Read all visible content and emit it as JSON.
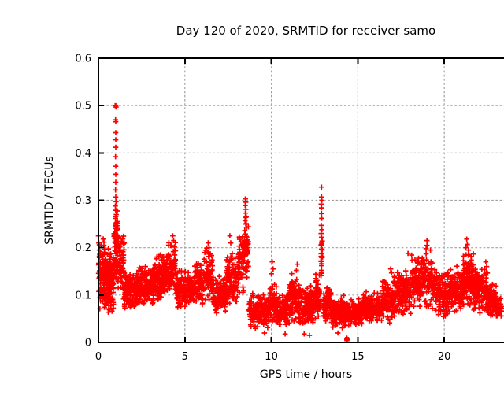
{
  "chart_data": {
    "type": "scatter",
    "title": "Day 120 of 2020, SRMTID for receiver samo",
    "xlabel": "GPS time / hours",
    "ylabel": "SRMTID / TECUs",
    "series_name": "SRMTID",
    "legend": "none",
    "grid": true,
    "xlim": [
      0,
      24
    ],
    "ylim": [
      0,
      0.6
    ],
    "x_ticks": [
      "0",
      "5",
      "10",
      "15",
      "20"
    ],
    "x_tick_values": [
      0,
      5,
      10,
      15,
      20
    ],
    "y_ticks": [
      "0",
      "0.1",
      "0.2",
      "0.3",
      "0.4",
      "0.5",
      "0.6"
    ],
    "y_tick_values": [
      0,
      0.1,
      0.2,
      0.3,
      0.4,
      0.5,
      0.6
    ],
    "marker": {
      "shape": "plus",
      "color": "#ff0000",
      "size": 6.6,
      "stroke_width": 1.7
    },
    "colors": {
      "points": "#ff0000",
      "grid": "#a0a0a0",
      "frame": "#000000",
      "text": "#000000",
      "background": "#ffffff"
    },
    "scatter": {
      "seed": 11,
      "segments": [
        [
          0.0,
          0.12,
          20,
          0.07,
          0.235
        ],
        [
          0.08,
          0.5,
          115,
          0.065,
          0.225
        ],
        [
          0.5,
          0.88,
          100,
          0.06,
          0.205
        ],
        [
          0.88,
          1.02,
          28,
          0.12,
          0.27
        ],
        [
          0.98,
          1.12,
          32,
          0.13,
          0.3
        ],
        [
          1.1,
          1.5,
          65,
          0.09,
          0.235
        ],
        [
          1.5,
          2.3,
          135,
          0.065,
          0.15
        ],
        [
          2.3,
          3.2,
          155,
          0.075,
          0.165
        ],
        [
          3.2,
          4.0,
          145,
          0.08,
          0.19
        ],
        [
          4.0,
          4.5,
          78,
          0.09,
          0.22
        ],
        [
          4.5,
          5.5,
          155,
          0.065,
          0.155
        ],
        [
          5.5,
          6.1,
          92,
          0.075,
          0.175
        ],
        [
          6.1,
          6.6,
          72,
          0.08,
          0.205
        ],
        [
          6.6,
          7.4,
          118,
          0.06,
          0.14
        ],
        [
          7.4,
          8.1,
          102,
          0.07,
          0.19
        ],
        [
          8.1,
          8.45,
          58,
          0.1,
          0.245
        ],
        [
          8.45,
          8.68,
          30,
          0.12,
          0.27
        ],
        [
          8.68,
          9.9,
          165,
          0.025,
          0.105
        ],
        [
          9.9,
          10.3,
          58,
          0.035,
          0.13
        ],
        [
          10.3,
          11.0,
          112,
          0.03,
          0.105
        ],
        [
          11.0,
          11.65,
          100,
          0.035,
          0.15
        ],
        [
          11.65,
          12.55,
          140,
          0.03,
          0.125
        ],
        [
          12.55,
          12.88,
          48,
          0.05,
          0.15
        ],
        [
          12.86,
          12.98,
          16,
          0.13,
          0.23
        ],
        [
          12.98,
          13.45,
          72,
          0.04,
          0.12
        ],
        [
          13.45,
          14.35,
          145,
          0.028,
          0.1
        ],
        [
          14.35,
          15.3,
          140,
          0.03,
          0.095
        ],
        [
          15.3,
          16.4,
          160,
          0.035,
          0.11
        ],
        [
          16.4,
          17.1,
          112,
          0.04,
          0.14
        ],
        [
          17.1,
          18.1,
          150,
          0.05,
          0.16
        ],
        [
          18.1,
          19.5,
          185,
          0.065,
          0.19
        ],
        [
          19.5,
          20.3,
          122,
          0.05,
          0.15
        ],
        [
          20.3,
          21.1,
          128,
          0.06,
          0.165
        ],
        [
          21.1,
          21.7,
          98,
          0.07,
          0.2
        ],
        [
          21.7,
          22.5,
          132,
          0.06,
          0.165
        ],
        [
          22.5,
          23.0,
          92,
          0.05,
          0.13
        ],
        [
          23.0,
          23.35,
          34,
          0.045,
          0.1
        ]
      ],
      "explicit_points": [
        [
          0.97,
          0.5
        ],
        [
          1.0,
          0.5
        ],
        [
          1.02,
          0.497
        ],
        [
          0.99,
          0.47
        ],
        [
          1.0,
          0.466
        ],
        [
          1.0,
          0.443
        ],
        [
          1.0,
          0.428
        ],
        [
          1.0,
          0.412
        ],
        [
          0.99,
          0.392
        ],
        [
          1.0,
          0.372
        ],
        [
          1.0,
          0.355
        ],
        [
          1.0,
          0.338
        ],
        [
          0.99,
          0.322
        ],
        [
          1.0,
          0.307
        ],
        [
          1.02,
          0.297
        ],
        [
          0.98,
          0.288
        ],
        [
          1.0,
          0.279
        ],
        [
          1.03,
          0.27
        ],
        [
          0.99,
          0.262
        ],
        [
          1.04,
          0.253
        ],
        [
          1.0,
          0.246
        ],
        [
          1.06,
          0.238
        ],
        [
          0.97,
          0.231
        ],
        [
          1.08,
          0.225
        ],
        [
          1.1,
          0.243
        ],
        [
          1.12,
          0.225
        ],
        [
          1.15,
          0.212
        ],
        [
          8.5,
          0.303
        ],
        [
          8.52,
          0.296
        ],
        [
          8.49,
          0.289
        ],
        [
          8.53,
          0.281
        ],
        [
          8.5,
          0.273
        ],
        [
          8.55,
          0.265
        ],
        [
          8.48,
          0.257
        ],
        [
          8.52,
          0.25
        ],
        [
          8.56,
          0.243
        ],
        [
          8.46,
          0.236
        ],
        [
          8.5,
          0.229
        ],
        [
          8.58,
          0.222
        ],
        [
          8.44,
          0.215
        ],
        [
          8.54,
          0.208
        ],
        [
          8.6,
          0.2
        ],
        [
          8.62,
          0.19
        ],
        [
          8.38,
          0.196
        ],
        [
          12.9,
          0.328
        ],
        [
          12.9,
          0.307
        ],
        [
          12.92,
          0.3
        ],
        [
          12.88,
          0.292
        ],
        [
          12.9,
          0.284
        ],
        [
          12.9,
          0.272
        ],
        [
          12.91,
          0.262
        ],
        [
          12.89,
          0.247
        ],
        [
          12.92,
          0.238
        ],
        [
          12.88,
          0.23
        ],
        [
          12.9,
          0.222
        ],
        [
          12.93,
          0.214
        ],
        [
          12.87,
          0.206
        ],
        [
          12.9,
          0.197
        ],
        [
          12.9,
          0.188
        ],
        [
          12.92,
          0.18
        ],
        [
          12.88,
          0.171
        ],
        [
          12.9,
          0.162
        ],
        [
          12.9,
          0.152
        ],
        [
          4.3,
          0.225
        ],
        [
          4.35,
          0.215
        ],
        [
          6.35,
          0.21
        ],
        [
          6.4,
          0.2
        ],
        [
          7.6,
          0.225
        ],
        [
          7.65,
          0.21
        ],
        [
          10.05,
          0.17
        ],
        [
          10.1,
          0.155
        ],
        [
          10.0,
          0.145
        ],
        [
          11.5,
          0.165
        ],
        [
          11.45,
          0.152
        ],
        [
          16.9,
          0.155
        ],
        [
          16.95,
          0.147
        ],
        [
          17.9,
          0.188
        ],
        [
          19.0,
          0.215
        ],
        [
          19.0,
          0.205
        ],
        [
          18.95,
          0.198
        ],
        [
          19.2,
          0.195
        ],
        [
          21.3,
          0.218
        ],
        [
          21.33,
          0.207
        ],
        [
          21.25,
          0.2
        ],
        [
          21.4,
          0.195
        ],
        [
          0.0,
          0.225
        ],
        [
          0.02,
          0.21
        ],
        [
          0.05,
          0.195
        ],
        [
          22.4,
          0.17
        ],
        [
          22.45,
          0.16
        ],
        [
          9.6,
          0.02
        ],
        [
          10.8,
          0.018
        ],
        [
          11.9,
          0.018
        ],
        [
          12.2,
          0.015
        ],
        [
          13.85,
          0.02
        ],
        [
          14.36,
          0.006
        ],
        [
          14.38,
          0.006
        ],
        [
          14.37,
          0.009
        ],
        [
          14.37,
          0.004
        ]
      ],
      "square_points": [
        [
          14.37,
          0.0075
        ]
      ]
    }
  }
}
